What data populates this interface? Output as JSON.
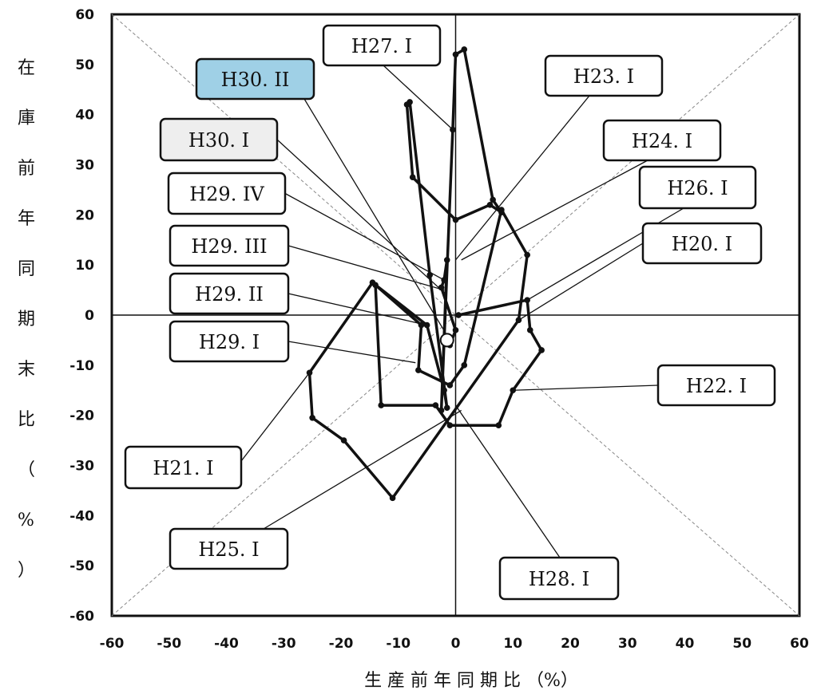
{
  "chart_data": {
    "type": "scatter",
    "xlabel": "生 産 前 年 同 期 比 （%）",
    "ylabel": "在庫前年同期末比（%）",
    "xlim": [
      -60,
      60
    ],
    "ylim": [
      -60,
      60
    ],
    "x_ticks": [
      "-60",
      "-50",
      "-40",
      "-30",
      "-20",
      "-10",
      "0",
      "10",
      "20",
      "30",
      "40",
      "50",
      "60"
    ],
    "y_ticks": [
      "60",
      "50",
      "40",
      "30",
      "20",
      "10",
      "0",
      "-10",
      "-20",
      "-30",
      "-40",
      "-50",
      "-60"
    ],
    "reference_lines": [
      "y = x",
      "y = -x"
    ],
    "path": [
      {
        "x": 0.5,
        "y": 0
      },
      {
        "x": 12.5,
        "y": 3
      },
      {
        "x": 13,
        "y": -3
      },
      {
        "x": 15,
        "y": -7
      },
      {
        "x": 10,
        "y": -15
      },
      {
        "x": 7.5,
        "y": -22
      },
      {
        "x": -1,
        "y": -22
      },
      {
        "x": -3.5,
        "y": -18
      },
      {
        "x": -13,
        "y": -18
      },
      {
        "x": -14,
        "y": 6
      },
      {
        "x": -6,
        "y": -2
      },
      {
        "x": -6.5,
        "y": -11
      },
      {
        "x": -1,
        "y": -14
      },
      {
        "x": 1.5,
        "y": -10
      },
      {
        "x": 8,
        "y": 21
      },
      {
        "x": 12.5,
        "y": 12
      },
      {
        "x": 11,
        "y": -1
      },
      {
        "x": -11,
        "y": -36.5
      },
      {
        "x": -19.5,
        "y": -25
      },
      {
        "x": -25,
        "y": -20.5
      },
      {
        "x": -25.5,
        "y": -11.5
      },
      {
        "x": -14.5,
        "y": 6.5
      },
      {
        "x": -5,
        "y": -2
      },
      {
        "x": -2,
        "y": -15
      },
      {
        "x": -1.5,
        "y": -18.5
      },
      {
        "x": -4.5,
        "y": 8
      },
      {
        "x": -8,
        "y": 42.5
      },
      {
        "x": -8.5,
        "y": 42
      },
      {
        "x": -7.5,
        "y": 27.5
      },
      {
        "x": 0,
        "y": 19
      },
      {
        "x": 6,
        "y": 22
      },
      {
        "x": 8,
        "y": 20.5
      },
      {
        "x": 6.5,
        "y": 23
      },
      {
        "x": 1.5,
        "y": 53
      },
      {
        "x": 0,
        "y": 52
      },
      {
        "x": -0.5,
        "y": 37
      },
      {
        "x": -2.5,
        "y": -19
      },
      {
        "x": -1.5,
        "y": 11
      },
      {
        "x": -2,
        "y": 7
      },
      {
        "x": -2.5,
        "y": 5.5
      },
      {
        "x": 0,
        "y": -3
      },
      {
        "x": -1,
        "y": -6
      }
    ],
    "end_point": {
      "x": -1.5,
      "y": -5
    },
    "labels": [
      {
        "text": "H20. I",
        "x": 11,
        "y": -1
      },
      {
        "text": "H21. I",
        "x": -25.5,
        "y": -11.5
      },
      {
        "text": "H22. I",
        "x": 10,
        "y": -15
      },
      {
        "text": "H23. I",
        "x": 0,
        "y": 11
      },
      {
        "text": "H24. I",
        "x": 1,
        "y": 11
      },
      {
        "text": "H25. I",
        "x": 1,
        "y": -19
      },
      {
        "text": "H26. I",
        "x": 12.5,
        "y": 3
      },
      {
        "text": "H27. I",
        "x": -0.5,
        "y": 37
      },
      {
        "text": "H28. I",
        "x": 0,
        "y": -18
      },
      {
        "text": "H29. I",
        "x": -7,
        "y": -9.5
      },
      {
        "text": "H29. II",
        "x": -5,
        "y": -2
      },
      {
        "text": "H29. III",
        "x": -2,
        "y": 5
      },
      {
        "text": "H29. IV",
        "x": -2,
        "y": 7
      },
      {
        "text": "H30. I",
        "x": -2.5,
        "y": 5
      },
      {
        "text": "H30. II",
        "x": -1,
        "y": -5
      }
    ]
  },
  "colors": {
    "line": "#111111",
    "highlight_fill": "#9fd0e6",
    "secondary_fill": "#eeeeee",
    "box_fill": "#ffffff"
  }
}
